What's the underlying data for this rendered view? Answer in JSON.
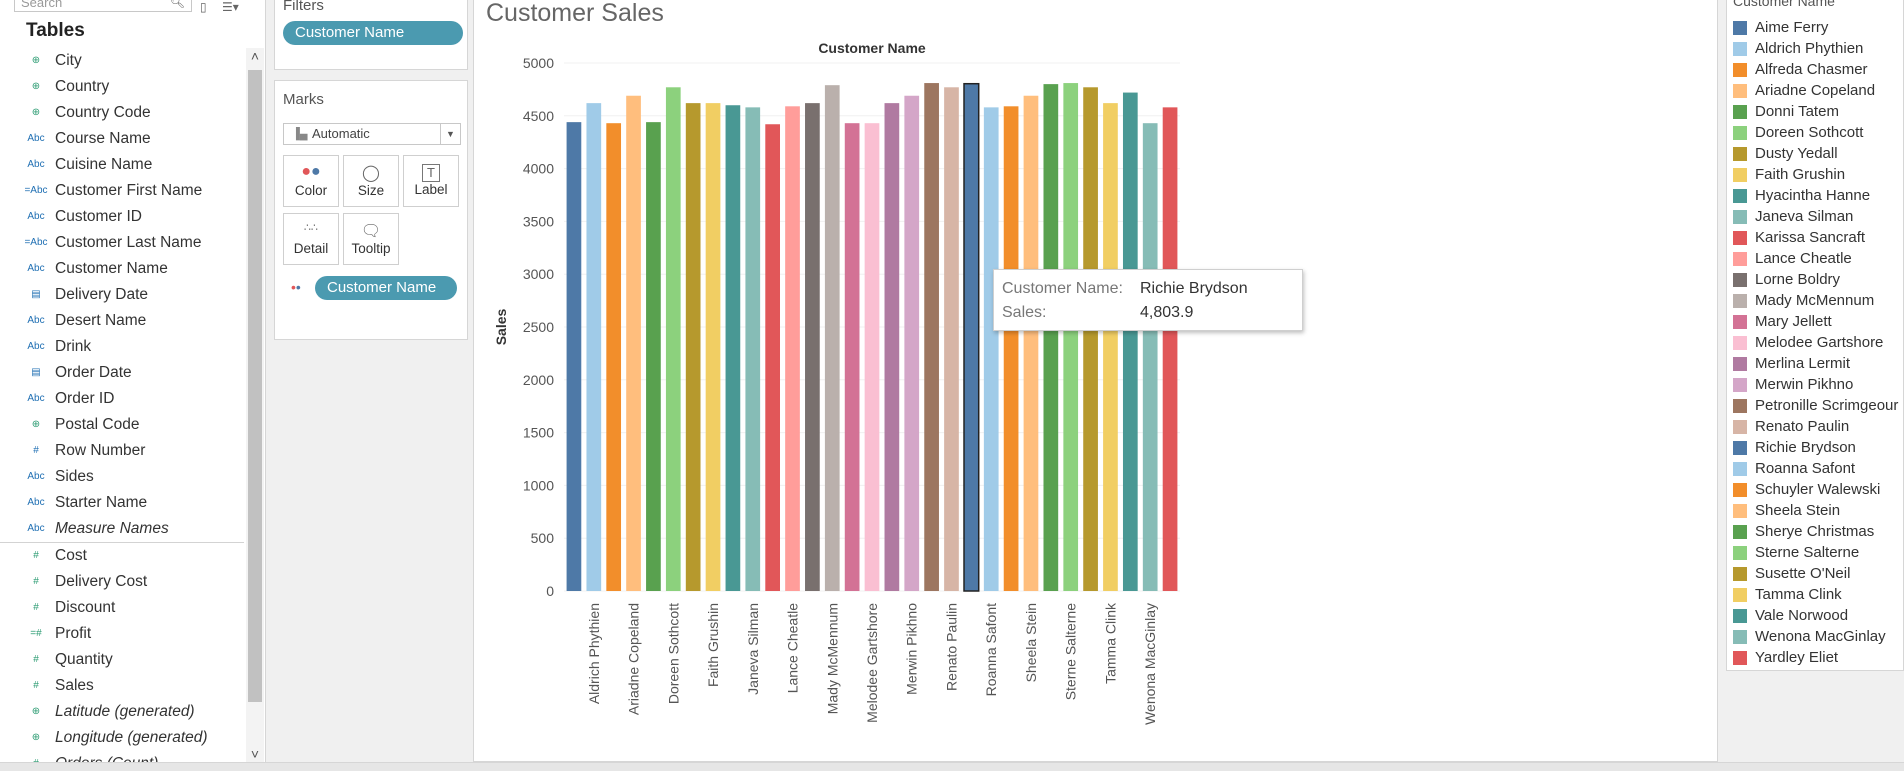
{
  "data_pane": {
    "search_placeholder": "Search",
    "tables_title": "Tables",
    "dimensions": [
      {
        "type": "geo",
        "name": "City"
      },
      {
        "type": "geo",
        "name": "Country"
      },
      {
        "type": "geo",
        "name": "Country Code"
      },
      {
        "type": "abc",
        "name": "Course Name"
      },
      {
        "type": "abc",
        "name": "Cuisine Name"
      },
      {
        "type": "abc-calc",
        "name": "Customer First Name"
      },
      {
        "type": "abc",
        "name": "Customer ID"
      },
      {
        "type": "abc-calc",
        "name": "Customer Last Name"
      },
      {
        "type": "abc",
        "name": "Customer Name"
      },
      {
        "type": "date",
        "name": "Delivery Date"
      },
      {
        "type": "abc",
        "name": "Desert Name"
      },
      {
        "type": "abc",
        "name": "Drink"
      },
      {
        "type": "date",
        "name": "Order Date"
      },
      {
        "type": "abc",
        "name": "Order ID"
      },
      {
        "type": "geo",
        "name": "Postal Code"
      },
      {
        "type": "num",
        "name": "Row Number"
      },
      {
        "type": "abc",
        "name": "Sides"
      },
      {
        "type": "abc",
        "name": "Starter Name"
      },
      {
        "type": "abc",
        "name": "Measure Names",
        "italic": true
      }
    ],
    "measures": [
      {
        "type": "num",
        "name": "Cost"
      },
      {
        "type": "num",
        "name": "Delivery Cost"
      },
      {
        "type": "num",
        "name": "Discount"
      },
      {
        "type": "num-calc",
        "name": "Profit"
      },
      {
        "type": "num",
        "name": "Quantity"
      },
      {
        "type": "num",
        "name": "Sales"
      },
      {
        "type": "geo",
        "name": "Latitude (generated)",
        "italic": true
      },
      {
        "type": "geo",
        "name": "Longitude (generated)",
        "italic": true
      },
      {
        "type": "num",
        "name": "Orders (Count)",
        "italic": true
      }
    ]
  },
  "filters": {
    "title": "Filters",
    "pill": "Customer Name"
  },
  "marks": {
    "title": "Marks",
    "mark_type": "Automatic",
    "buttons": {
      "color": "Color",
      "size": "Size",
      "label": "Label",
      "detail": "Detail",
      "tooltip": "Tooltip"
    },
    "pill": "Customer Name"
  },
  "sheet": {
    "title": "Customer Sales"
  },
  "tooltip": {
    "name_key": "Customer Name:",
    "name_val": "Richie Brydson",
    "sales_key": "Sales:",
    "sales_val": "4,803.9"
  },
  "chart_data": {
    "type": "bar",
    "title": "",
    "header": "Customer Name",
    "ylabel": "Sales",
    "ylim": [
      0,
      5000
    ],
    "yticks": [
      0,
      500,
      1000,
      1500,
      2000,
      2500,
      3000,
      3500,
      4000,
      4500,
      5000
    ],
    "categories": [
      "Aime Ferry",
      "Aldrich Phythien",
      "Alfreda Chasmer",
      "Ariadne Copeland",
      "Donni Tatem",
      "Doreen Sothcott",
      "Dusty Yedall",
      "Faith Grushin",
      "Hyacintha Hanne",
      "Janeva Silman",
      "Karissa Sancraft",
      "Lance Cheatle",
      "Lorne Boldry",
      "Mady McMennum",
      "Mary Jellett",
      "Melodee Gartshore",
      "Merlina Lermit",
      "Merwin Pikhno",
      "Petronille Scrimgeour",
      "Renato Paulin",
      "Richie Brydson",
      "Roanna Safont",
      "Schuyler Walewski",
      "Sheela Stein",
      "Sherye Christmas",
      "Sterne Salterne",
      "Susette O'Neil",
      "Tamma Clink",
      "Vale Norwood",
      "Wenona MacGinlay",
      "Yardley Eliet"
    ],
    "visible_tick_labels": [
      "Aldrich Phythien",
      "Ariadne Copeland",
      "Doreen Sothcott",
      "Faith Grushin",
      "Janeva Silman",
      "Lance Cheatle",
      "Mady McMennum",
      "Melodee Gartshore",
      "Merwin Pikhno",
      "Renato Paulin",
      "Roanna Safont",
      "Sheela Stein",
      "Sterne Salterne",
      "Tamma Clink",
      "Wenona MacGinlay"
    ],
    "values": [
      4440,
      4620,
      4430,
      4690,
      4440,
      4770,
      4620,
      4620,
      4600,
      4580,
      4420,
      4590,
      4620,
      4790,
      4430,
      4430,
      4620,
      4690,
      4810,
      4770,
      4803.9,
      4580,
      4590,
      4690,
      4800,
      4810,
      4770,
      4620,
      4720,
      4430,
      4580
    ],
    "colors": [
      "#4e79a7",
      "#a0cbe8",
      "#f28e2b",
      "#ffbe7d",
      "#59a14f",
      "#8cd17d",
      "#b6992d",
      "#f1ce63",
      "#499894",
      "#86bcb6",
      "#e15759",
      "#ff9d9a",
      "#79706e",
      "#bab0ac",
      "#d37295",
      "#fabfd2",
      "#b07aa1",
      "#d4a6c8",
      "#9d7660",
      "#d7b5a6",
      "#4e79a7",
      "#a0cbe8",
      "#f28e2b",
      "#ffbe7d",
      "#59a14f",
      "#8cd17d",
      "#b6992d",
      "#f1ce63",
      "#499894",
      "#86bcb6",
      "#e15759"
    ],
    "highlighted": "Richie Brydson",
    "legend_title": "Customer Name",
    "legend_position": "right"
  }
}
